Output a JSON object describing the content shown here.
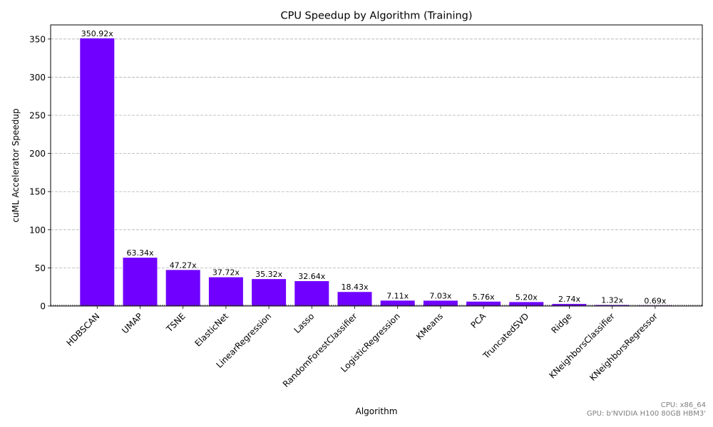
{
  "chart_data": {
    "type": "bar",
    "title": "CPU Speedup by Algorithm (Training)",
    "xlabel": "Algorithm",
    "ylabel": "cuML Accelerator Speedup",
    "categories": [
      "HDBSCAN",
      "UMAP",
      "TSNE",
      "ElasticNet",
      "LinearRegression",
      "Lasso",
      "RandomForestClassifier",
      "LogisticRegression",
      "KMeans",
      "PCA",
      "TruncatedSVD",
      "Ridge",
      "KNeighborsClassifier",
      "KNeighborsRegressor"
    ],
    "values": [
      350.92,
      63.34,
      47.27,
      37.72,
      35.32,
      32.64,
      18.43,
      7.11,
      7.03,
      5.76,
      5.2,
      2.74,
      1.32,
      0.69
    ],
    "data_labels": [
      "350.92x",
      "63.34x",
      "47.27x",
      "37.72x",
      "35.32x",
      "32.64x",
      "18.43x",
      "7.11x",
      "7.03x",
      "5.76x",
      "5.20x",
      "2.74x",
      "1.32x",
      "0.69x"
    ],
    "yticks": [
      0,
      50,
      100,
      150,
      200,
      250,
      300,
      350
    ],
    "ylim": [
      0,
      368.5
    ],
    "grid": true,
    "bar_color": "#7000ff",
    "baseline_value": 1
  },
  "footnote": {
    "cpu": "CPU: x86_64",
    "gpu": "GPU: b'NVIDIA H100 80GB HBM3'"
  }
}
